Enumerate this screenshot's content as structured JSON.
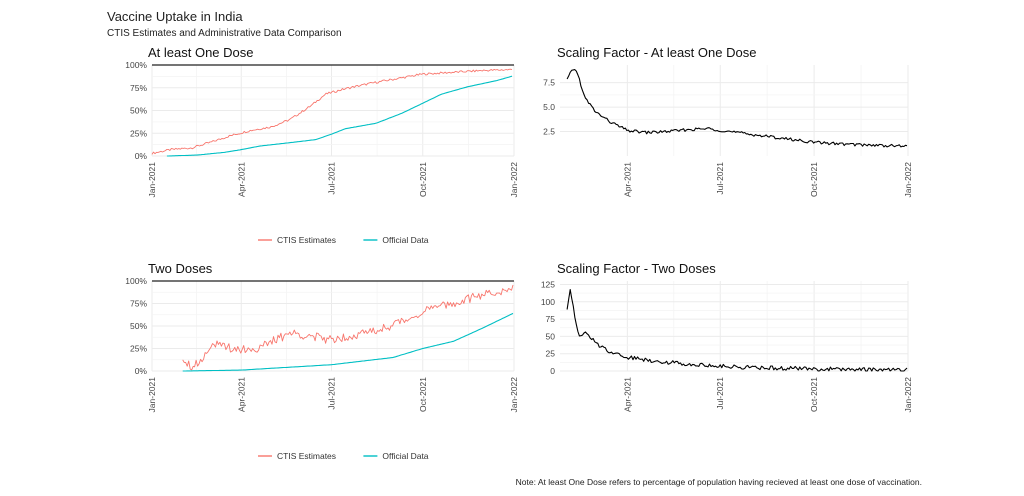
{
  "title": "Vaccine Uptake in India",
  "subtitle": "CTIS Estimates and Administrative Data Comparison",
  "footnote": "Note: At least One Dose refers to percentage of population having recieved at least one dose of vaccination.",
  "colors": {
    "ctis": "#F8766D",
    "official": "#00BFC4",
    "scaling": "#000000",
    "grid": "#EBEBEB"
  },
  "chart_data": [
    {
      "type": "line",
      "title": "At least One Dose",
      "x_ticks": [
        "Jan-2021",
        "Apr-2021",
        "Jul-2021",
        "Oct-2021",
        "Jan-2022"
      ],
      "x_range": [
        "2021-01-01",
        "2022-01-01"
      ],
      "y_ticks": [
        "0%",
        "25%",
        "50%",
        "75%",
        "100%"
      ],
      "ylim": [
        0,
        100
      ],
      "reference_line": 100,
      "grid": true,
      "legend": "bottom",
      "series": [
        {
          "name": "CTIS Estimates",
          "color": "#F8766D",
          "noise": 1.2,
          "points": [
            [
              "2021-01-01",
              3
            ],
            [
              "2021-01-20",
              7
            ],
            [
              "2021-02-10",
              9
            ],
            [
              "2021-03-01",
              15
            ],
            [
              "2021-03-20",
              22
            ],
            [
              "2021-04-10",
              28
            ],
            [
              "2021-05-01",
              32
            ],
            [
              "2021-05-20",
              40
            ],
            [
              "2021-06-10",
              55
            ],
            [
              "2021-06-25",
              68
            ],
            [
              "2021-07-15",
              74
            ],
            [
              "2021-08-10",
              80
            ],
            [
              "2021-09-05",
              85
            ],
            [
              "2021-10-01",
              90
            ],
            [
              "2021-11-01",
              92
            ],
            [
              "2021-12-01",
              94
            ],
            [
              "2021-12-31",
              95
            ]
          ]
        },
        {
          "name": "Official Data",
          "color": "#00BFC4",
          "noise": 0,
          "points": [
            [
              "2021-01-16",
              0
            ],
            [
              "2021-02-15",
              1
            ],
            [
              "2021-03-15",
              4
            ],
            [
              "2021-04-01",
              7
            ],
            [
              "2021-04-20",
              11
            ],
            [
              "2021-05-15",
              14
            ],
            [
              "2021-06-15",
              18
            ],
            [
              "2021-07-01",
              24
            ],
            [
              "2021-07-15",
              30
            ],
            [
              "2021-08-15",
              36
            ],
            [
              "2021-09-10",
              47
            ],
            [
              "2021-10-01",
              58
            ],
            [
              "2021-10-20",
              68
            ],
            [
              "2021-11-15",
              76
            ],
            [
              "2021-12-15",
              83
            ],
            [
              "2021-12-31",
              88
            ]
          ]
        }
      ]
    },
    {
      "type": "line",
      "title": "Scaling Factor - At least One Dose",
      "x_ticks": [
        "Apr-2021",
        "Jul-2021",
        "Oct-2021",
        "Jan-2022"
      ],
      "x_range": [
        "2021-01-25",
        "2022-01-01"
      ],
      "y_ticks": [
        "2.5",
        "5.0",
        "7.5"
      ],
      "ylim": [
        0,
        9.3
      ],
      "grid": true,
      "series": [
        {
          "name": "",
          "color": "#000000",
          "noise": 0.15,
          "points": [
            [
              "2021-02-01",
              7.8
            ],
            [
              "2021-02-05",
              8.6
            ],
            [
              "2021-02-08",
              9.0
            ],
            [
              "2021-02-12",
              8.2
            ],
            [
              "2021-02-18",
              6.0
            ],
            [
              "2021-03-01",
              4.5
            ],
            [
              "2021-03-15",
              3.5
            ],
            [
              "2021-04-01",
              2.6
            ],
            [
              "2021-04-20",
              2.4
            ],
            [
              "2021-05-10",
              2.5
            ],
            [
              "2021-06-01",
              2.7
            ],
            [
              "2021-06-20",
              2.8
            ],
            [
              "2021-07-10",
              2.5
            ],
            [
              "2021-08-01",
              2.2
            ],
            [
              "2021-09-01",
              1.8
            ],
            [
              "2021-10-01",
              1.4
            ],
            [
              "2021-11-01",
              1.2
            ],
            [
              "2021-12-01",
              1.1
            ],
            [
              "2021-12-31",
              1.0
            ]
          ]
        }
      ]
    },
    {
      "type": "line",
      "title": "Two Doses",
      "x_ticks": [
        "Jan-2021",
        "Apr-2021",
        "Jul-2021",
        "Oct-2021",
        "Jan-2022"
      ],
      "x_range": [
        "2021-01-01",
        "2022-01-01"
      ],
      "y_ticks": [
        "0%",
        "25%",
        "50%",
        "75%",
        "100%"
      ],
      "ylim": [
        0,
        100
      ],
      "reference_line": 100,
      "grid": true,
      "legend": "bottom",
      "series": [
        {
          "name": "CTIS Estimates",
          "color": "#F8766D",
          "noise": 5,
          "points": [
            [
              "2021-02-01",
              15
            ],
            [
              "2021-02-10",
              5
            ],
            [
              "2021-02-20",
              12
            ],
            [
              "2021-03-01",
              30
            ],
            [
              "2021-03-10",
              28
            ],
            [
              "2021-03-25",
              25
            ],
            [
              "2021-04-15",
              24
            ],
            [
              "2021-05-01",
              32
            ],
            [
              "2021-05-20",
              42
            ],
            [
              "2021-06-05",
              40
            ],
            [
              "2021-06-25",
              35
            ],
            [
              "2021-07-15",
              38
            ],
            [
              "2021-08-15",
              45
            ],
            [
              "2021-09-10",
              55
            ],
            [
              "2021-10-05",
              68
            ],
            [
              "2021-11-01",
              75
            ],
            [
              "2021-12-01",
              85
            ],
            [
              "2021-12-31",
              91
            ]
          ]
        },
        {
          "name": "Official Data",
          "color": "#00BFC4",
          "noise": 0,
          "points": [
            [
              "2021-02-01",
              0
            ],
            [
              "2021-04-01",
              1
            ],
            [
              "2021-05-01",
              3
            ],
            [
              "2021-06-01",
              5
            ],
            [
              "2021-07-01",
              7
            ],
            [
              "2021-08-01",
              11
            ],
            [
              "2021-09-01",
              15
            ],
            [
              "2021-10-01",
              25
            ],
            [
              "2021-11-01",
              33
            ],
            [
              "2021-12-01",
              48
            ],
            [
              "2021-12-31",
              64
            ]
          ]
        }
      ]
    },
    {
      "type": "line",
      "title": "Scaling Factor - Two Doses",
      "x_ticks": [
        "Apr-2021",
        "Jul-2021",
        "Oct-2021",
        "Jan-2022"
      ],
      "x_range": [
        "2021-01-25",
        "2022-01-01"
      ],
      "y_ticks": [
        "0",
        "25",
        "50",
        "75",
        "100",
        "125"
      ],
      "ylim": [
        0,
        130
      ],
      "grid": true,
      "series": [
        {
          "name": "",
          "color": "#000000",
          "noise": 3,
          "points": [
            [
              "2021-02-01",
              90
            ],
            [
              "2021-02-04",
              120
            ],
            [
              "2021-02-08",
              85
            ],
            [
              "2021-02-12",
              50
            ],
            [
              "2021-02-20",
              55
            ],
            [
              "2021-03-01",
              40
            ],
            [
              "2021-03-15",
              28
            ],
            [
              "2021-04-01",
              20
            ],
            [
              "2021-05-01",
              14
            ],
            [
              "2021-06-01",
              10
            ],
            [
              "2021-07-01",
              7
            ],
            [
              "2021-08-01",
              5
            ],
            [
              "2021-09-01",
              4
            ],
            [
              "2021-10-01",
              3
            ],
            [
              "2021-11-01",
              2.5
            ],
            [
              "2021-12-01",
              2
            ],
            [
              "2021-12-31",
              1.5
            ]
          ]
        }
      ]
    }
  ]
}
